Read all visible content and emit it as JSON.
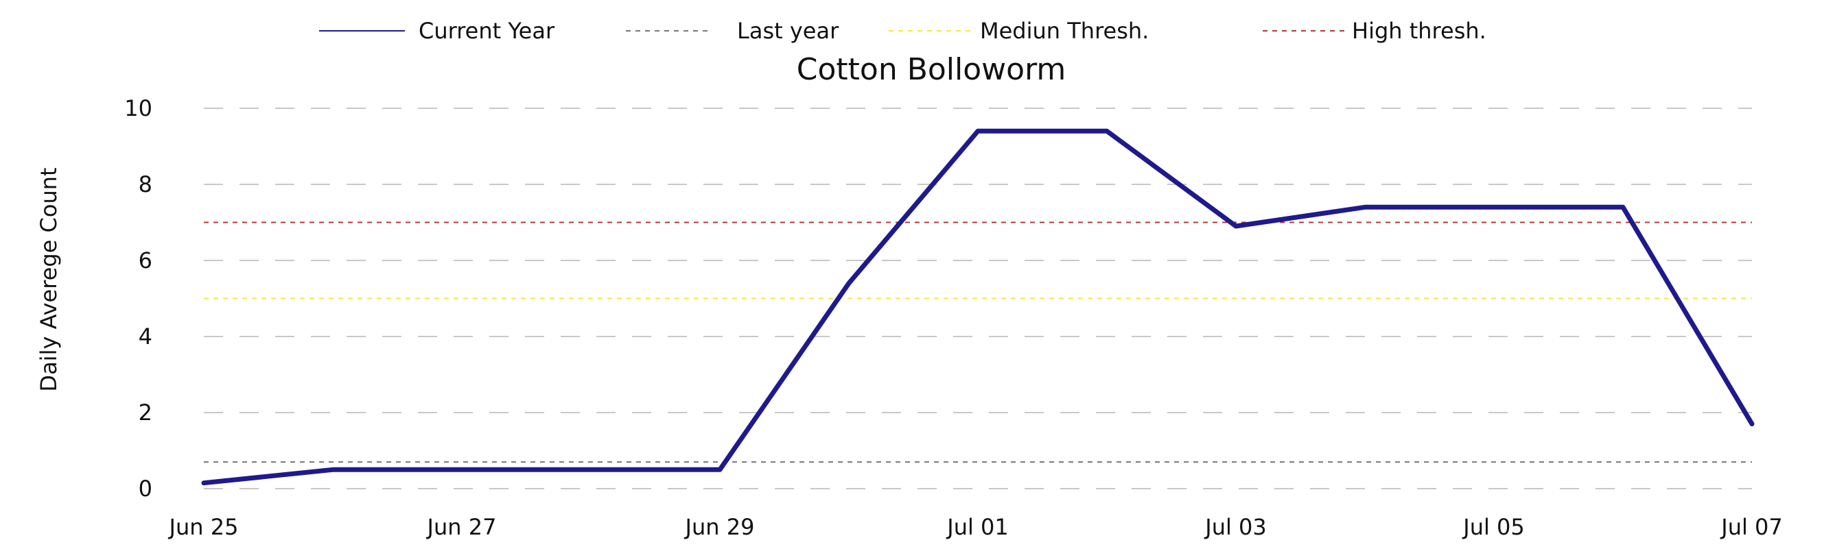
{
  "chart_data": {
    "type": "line",
    "title": "Cotton Bolloworm",
    "xlabel": "",
    "ylabel": "Daily Averege Count",
    "ylim": [
      0,
      10
    ],
    "yticks": [
      "0",
      "2",
      "4",
      "6",
      "8",
      "10"
    ],
    "x": [
      "2023-06-25",
      "2023-06-26",
      "2023-06-27",
      "2023-06-28",
      "2023-06-29",
      "2023-06-30",
      "2023-07-01",
      "2023-07-02",
      "2023-07-03",
      "2023-07-04",
      "2023-07-05",
      "2023-07-06",
      "2023-07-07"
    ],
    "xtick_labels": [
      "Jun 25",
      "Jun 27",
      "Jun 29",
      "Jul 01",
      "Jul 03",
      "Jul 05",
      "Jul 07"
    ],
    "grid": true,
    "legend_position": "top",
    "series": [
      {
        "name": "Current Year",
        "style": "solid",
        "color": "#1f1a8c",
        "values": [
          0.15,
          0.5,
          0.5,
          0.5,
          0.5,
          5.4,
          9.4,
          9.4,
          6.9,
          7.4,
          7.4,
          7.4,
          1.7
        ]
      }
    ],
    "reference_lines": [
      {
        "name": "Last year",
        "style": "dashed",
        "color": "#777777",
        "value": 0.7
      },
      {
        "name": "Mediun Thresh.",
        "style": "dashed",
        "color": "#f2e84a",
        "value": 5.0
      },
      {
        "name": "High thresh.",
        "style": "dashed",
        "color": "#b03a3a",
        "value": 7.0
      }
    ]
  }
}
